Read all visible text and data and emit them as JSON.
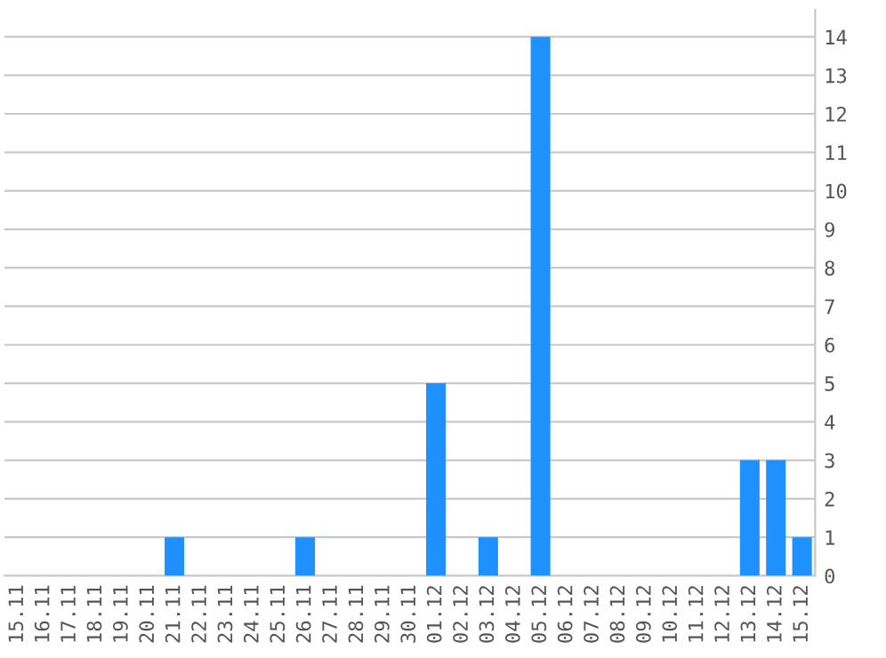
{
  "chart_data": {
    "type": "bar",
    "categories": [
      "15.11",
      "16.11",
      "17.11",
      "18.11",
      "19.11",
      "20.11",
      "21.11",
      "22.11",
      "23.11",
      "24.11",
      "25.11",
      "26.11",
      "27.11",
      "28.11",
      "29.11",
      "30.11",
      "01.12",
      "02.12",
      "03.12",
      "04.12",
      "05.12",
      "06.12",
      "07.12",
      "08.12",
      "09.12",
      "10.12",
      "11.12",
      "12.12",
      "13.12",
      "14.12",
      "15.12"
    ],
    "values": [
      0,
      0,
      0,
      0,
      0,
      0,
      1,
      0,
      0,
      0,
      0,
      1,
      0,
      0,
      0,
      0,
      5,
      0,
      1,
      0,
      14,
      0,
      0,
      0,
      0,
      0,
      0,
      0,
      3,
      3,
      1
    ],
    "color": "#1e90ff",
    "ylim": [
      0,
      14.7
    ],
    "yticks": [
      0,
      1,
      2,
      3,
      4,
      5,
      6,
      7,
      8,
      9,
      10,
      11,
      12,
      13,
      14
    ],
    "grid": "y"
  }
}
